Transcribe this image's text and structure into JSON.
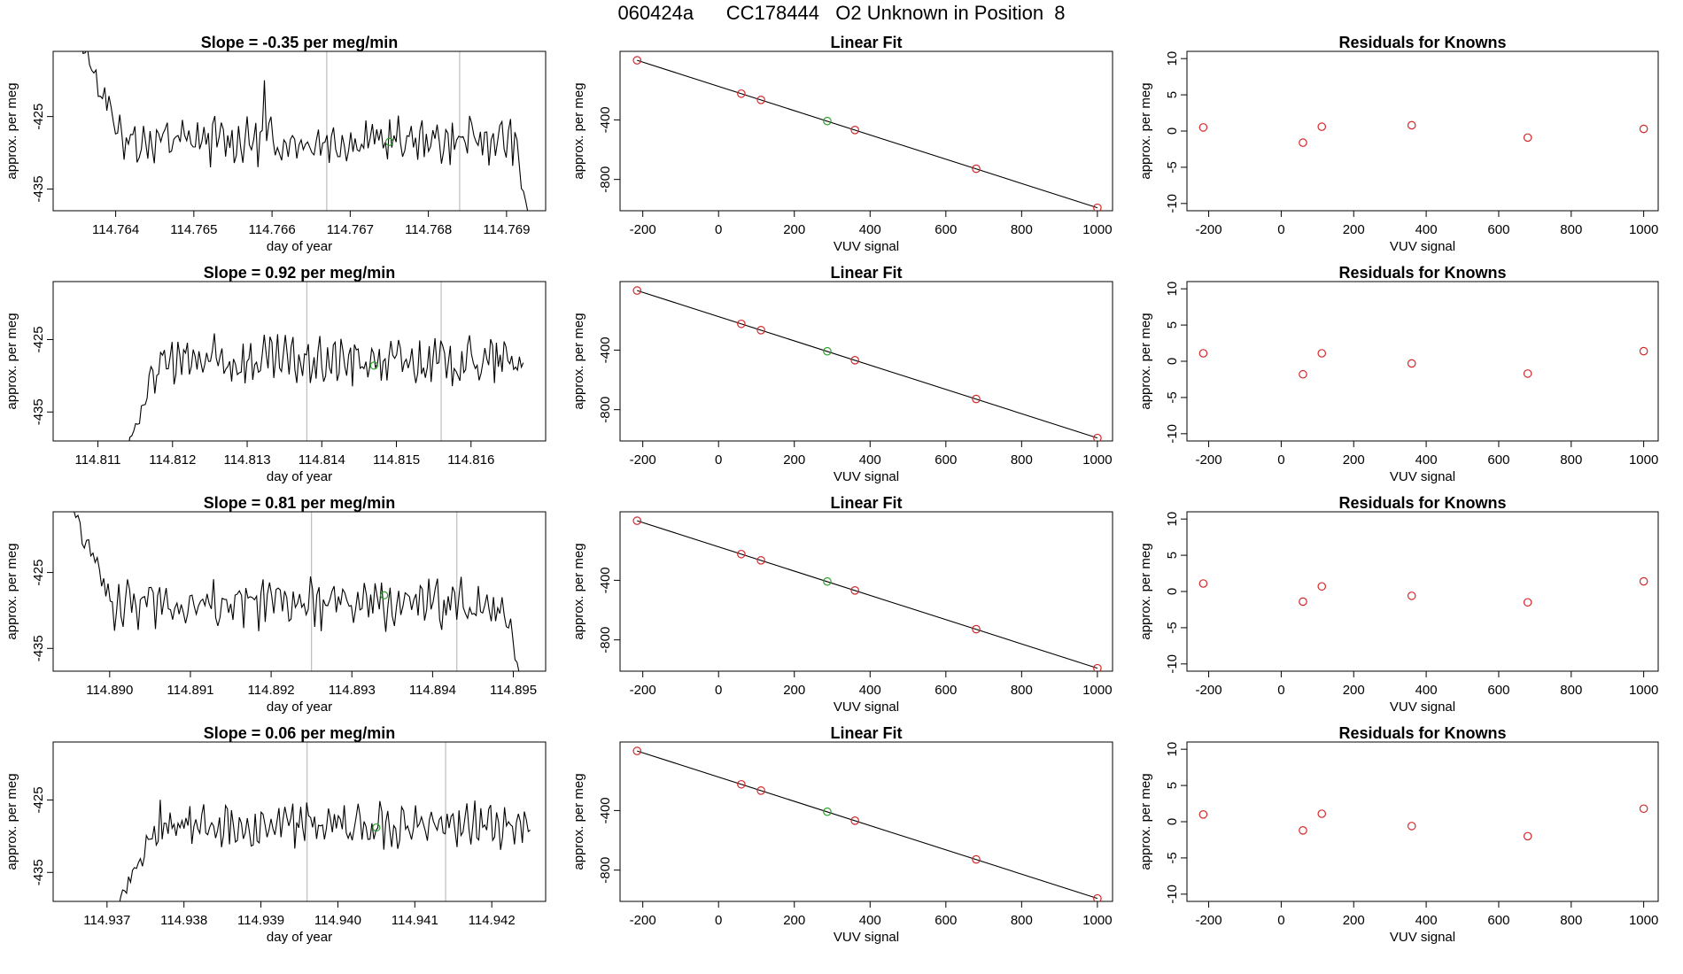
{
  "page_title": "060424a      CC178444   O2 Unknown in Position  8",
  "colors": {
    "trace": "#000000",
    "gridline": "#bebebe",
    "known": "#d62728",
    "unknown": "#2ca02c"
  },
  "labels": {
    "day_of_year": "day of year",
    "vuv_signal": "VUV signal",
    "approx_per_meg": "approx. per meg",
    "linear_fit": "Linear Fit",
    "residuals_for_knowns": "Residuals for Knowns",
    "slope_prefix": "Slope = ",
    "slope_suffix": " per meg/min"
  },
  "chart_data": [
    {
      "row": 1,
      "type": "line",
      "title": "Slope =  -0.35  per meg/min",
      "slope": -0.35,
      "xlabel": "day of year",
      "ylabel": "approx. per meg",
      "xlim": [
        114.7632,
        114.7695
      ],
      "ylim": [
        -438,
        -416
      ],
      "xticks": [
        114.764,
        114.765,
        114.766,
        114.767,
        114.768,
        114.769
      ],
      "xtick_labels": [
        "114.764",
        "114.765",
        "114.766",
        "114.767",
        "114.768",
        "114.769"
      ],
      "yticks": [
        -425,
        -435
      ],
      "ytick_labels": [
        "-425",
        "-435"
      ],
      "vlines": [
        114.7667,
        114.7684
      ],
      "unknown_point": {
        "x": 114.7675,
        "y": -428.5
      },
      "trace": {
        "x_start": 114.7635,
        "x_end": 114.7693,
        "start_y": -413,
        "base": -428.3,
        "amp": 2.5,
        "spike": {
          "x": 114.7659,
          "y": -420
        },
        "end_drop": -440
      }
    },
    {
      "row": 1,
      "type": "scatter",
      "title": "Linear Fit",
      "xlabel": "VUV signal",
      "ylabel": "approx. per meg",
      "xlim": [
        -260,
        1040
      ],
      "ylim": [
        -1010,
        60
      ],
      "xticks": [
        -200,
        0,
        200,
        400,
        600,
        800,
        1000
      ],
      "xtick_labels": [
        "-200",
        "0",
        "200",
        "400",
        "600",
        "800",
        "1000"
      ],
      "yticks": [
        -400,
        -800
      ],
      "ytick_labels": [
        "-400",
        "-800"
      ],
      "line": {
        "x": [
          -215,
          1000
        ],
        "y": [
          0,
          -990
        ]
      },
      "knowns": {
        "x": [
          -215,
          60,
          112,
          360,
          680,
          1000
        ],
        "y": [
          0,
          -224,
          -266,
          -468,
          -728,
          -990
        ]
      },
      "unknown": {
        "x": 287,
        "y": -408
      }
    },
    {
      "row": 1,
      "type": "scatter",
      "title": "Residuals for Knowns",
      "xlabel": "VUV signal",
      "ylabel": "approx. per meg",
      "xlim": [
        -260,
        1040
      ],
      "ylim": [
        -11,
        11
      ],
      "xticks": [
        -200,
        0,
        200,
        400,
        600,
        800,
        1000
      ],
      "xtick_labels": [
        "-200",
        "0",
        "200",
        "400",
        "600",
        "800",
        "1000"
      ],
      "yticks": [
        10,
        5,
        0,
        -5,
        -10
      ],
      "ytick_labels": [
        "10",
        "5",
        "0",
        "-5",
        "-10"
      ],
      "x": [
        -215,
        60,
        112,
        360,
        680,
        1000
      ],
      "y": [
        0.5,
        -1.6,
        0.6,
        0.8,
        -0.9,
        0.3
      ]
    },
    {
      "row": 2,
      "type": "line",
      "title": "Slope =  0.92  per meg/min",
      "slope": 0.92,
      "xlabel": "day of year",
      "ylabel": "approx. per meg",
      "xlim": [
        114.8104,
        114.817
      ],
      "ylim": [
        -439,
        -417
      ],
      "xticks": [
        114.811,
        114.812,
        114.813,
        114.814,
        114.815,
        114.816
      ],
      "xtick_labels": [
        "114.811",
        "114.812",
        "114.813",
        "114.814",
        "114.815",
        "114.816"
      ],
      "yticks": [
        -425,
        -435
      ],
      "ytick_labels": [
        "-425",
        "-435"
      ],
      "vlines": [
        114.8138,
        114.8156
      ],
      "unknown_point": {
        "x": 114.8147,
        "y": -428.6
      },
      "trace": {
        "x_start": 114.8113,
        "x_end": 114.8167,
        "start_y": -442,
        "base": -428,
        "amp": 2.6,
        "spike": null,
        "end_drop": null
      }
    },
    {
      "row": 2,
      "type": "scatter",
      "title": "Linear Fit",
      "xlabel": "VUV signal",
      "ylabel": "approx. per meg",
      "xlim": [
        -260,
        1040
      ],
      "ylim": [
        -1010,
        60
      ],
      "xticks": [
        -200,
        0,
        200,
        400,
        600,
        800,
        1000
      ],
      "xtick_labels": [
        "-200",
        "0",
        "200",
        "400",
        "600",
        "800",
        "1000"
      ],
      "yticks": [
        -400,
        -800
      ],
      "ytick_labels": [
        "-400",
        "-800"
      ],
      "line": {
        "x": [
          -215,
          1000
        ],
        "y": [
          0,
          -990
        ]
      },
      "knowns": {
        "x": [
          -215,
          60,
          112,
          360,
          680,
          1000
        ],
        "y": [
          0,
          -224,
          -266,
          -468,
          -728,
          -990
        ]
      },
      "unknown": {
        "x": 287,
        "y": -408
      }
    },
    {
      "row": 2,
      "type": "scatter",
      "title": "Residuals for Knowns",
      "xlabel": "VUV signal",
      "ylabel": "approx. per meg",
      "xlim": [
        -260,
        1040
      ],
      "ylim": [
        -11,
        11
      ],
      "xticks": [
        -200,
        0,
        200,
        400,
        600,
        800,
        1000
      ],
      "xtick_labels": [
        "-200",
        "0",
        "200",
        "400",
        "600",
        "800",
        "1000"
      ],
      "yticks": [
        10,
        5,
        0,
        -5,
        -10
      ],
      "ytick_labels": [
        "10",
        "5",
        "0",
        "-5",
        "-10"
      ],
      "x": [
        -215,
        60,
        112,
        360,
        680,
        1000
      ],
      "y": [
        1.1,
        -1.8,
        1.1,
        -0.3,
        -1.7,
        1.4
      ]
    },
    {
      "row": 3,
      "type": "line",
      "title": "Slope =  0.81  per meg/min",
      "slope": 0.81,
      "xlabel": "day of year",
      "ylabel": "approx. per meg",
      "xlim": [
        114.8893,
        114.8954
      ],
      "ylim": [
        -438,
        -417
      ],
      "xticks": [
        114.89,
        114.891,
        114.892,
        114.893,
        114.894,
        114.895
      ],
      "xtick_labels": [
        "114.890",
        "114.891",
        "114.892",
        "114.893",
        "114.894",
        "114.895"
      ],
      "yticks": [
        -425,
        -435
      ],
      "ytick_labels": [
        "-425",
        "-435"
      ],
      "vlines": [
        114.8925,
        114.8943
      ],
      "unknown_point": {
        "x": 114.8934,
        "y": -428
      },
      "trace": {
        "x_start": 114.8895,
        "x_end": 114.8951,
        "start_y": -416,
        "base": -429.2,
        "amp": 2.6,
        "spike": null,
        "end_drop": -440
      }
    },
    {
      "row": 3,
      "type": "scatter",
      "title": "Linear Fit",
      "xlabel": "VUV signal",
      "ylabel": "approx. per meg",
      "xlim": [
        -260,
        1040
      ],
      "ylim": [
        -1010,
        60
      ],
      "xticks": [
        -200,
        0,
        200,
        400,
        600,
        800,
        1000
      ],
      "xtick_labels": [
        "-200",
        "0",
        "200",
        "400",
        "600",
        "800",
        "1000"
      ],
      "yticks": [
        -400,
        -800
      ],
      "ytick_labels": [
        "-400",
        "-800"
      ],
      "line": {
        "x": [
          -215,
          1000
        ],
        "y": [
          0,
          -990
        ]
      },
      "knowns": {
        "x": [
          -215,
          60,
          112,
          360,
          680,
          1000
        ],
        "y": [
          0,
          -224,
          -266,
          -468,
          -728,
          -990
        ]
      },
      "unknown": {
        "x": 287,
        "y": -408
      }
    },
    {
      "row": 3,
      "type": "scatter",
      "title": "Residuals for Knowns",
      "xlabel": "VUV signal",
      "ylabel": "approx. per meg",
      "xlim": [
        -260,
        1040
      ],
      "ylim": [
        -11,
        11
      ],
      "xticks": [
        -200,
        0,
        200,
        400,
        600,
        800,
        1000
      ],
      "xtick_labels": [
        "-200",
        "0",
        "200",
        "400",
        "600",
        "800",
        "1000"
      ],
      "yticks": [
        10,
        5,
        0,
        -5,
        -10
      ],
      "ytick_labels": [
        "10",
        "5",
        "0",
        "-5",
        "-10"
      ],
      "x": [
        -215,
        60,
        112,
        360,
        680,
        1000
      ],
      "y": [
        1.1,
        -1.4,
        0.7,
        -0.6,
        -1.5,
        1.4
      ]
    },
    {
      "row": 4,
      "type": "line",
      "title": "Slope =  0.06  per meg/min",
      "slope": 0.06,
      "xlabel": "day of year",
      "ylabel": "approx. per meg",
      "xlim": [
        114.9363,
        114.9427
      ],
      "ylim": [
        -439,
        -417
      ],
      "xticks": [
        114.937,
        114.938,
        114.939,
        114.94,
        114.941,
        114.942
      ],
      "xtick_labels": [
        "114.937",
        "114.938",
        "114.939",
        "114.940",
        "114.941",
        "114.942"
      ],
      "yticks": [
        -425,
        -435
      ],
      "ytick_labels": [
        "-425",
        "-435"
      ],
      "vlines": [
        114.9396,
        114.9414
      ],
      "unknown_point": {
        "x": 114.9405,
        "y": -428.8
      },
      "trace": {
        "x_start": 114.9371,
        "x_end": 114.9425,
        "start_y": -440,
        "base": -428.5,
        "amp": 2.4,
        "spike": null,
        "end_drop": null
      }
    },
    {
      "row": 4,
      "type": "scatter",
      "title": "Linear Fit",
      "xlabel": "VUV signal",
      "ylabel": "approx. per meg",
      "xlim": [
        -260,
        1040
      ],
      "ylim": [
        -1010,
        60
      ],
      "xticks": [
        -200,
        0,
        200,
        400,
        600,
        800,
        1000
      ],
      "xtick_labels": [
        "-200",
        "0",
        "200",
        "400",
        "600",
        "800",
        "1000"
      ],
      "yticks": [
        -400,
        -800
      ],
      "ytick_labels": [
        "-400",
        "-800"
      ],
      "line": {
        "x": [
          -215,
          1000
        ],
        "y": [
          0,
          -990
        ]
      },
      "knowns": {
        "x": [
          -215,
          60,
          112,
          360,
          680,
          1000
        ],
        "y": [
          0,
          -224,
          -266,
          -468,
          -728,
          -990
        ]
      },
      "unknown": {
        "x": 287,
        "y": -408
      }
    },
    {
      "row": 4,
      "type": "scatter",
      "title": "Residuals for Knowns",
      "xlabel": "VUV signal",
      "ylabel": "approx. per meg",
      "xlim": [
        -260,
        1040
      ],
      "ylim": [
        -11,
        11
      ],
      "xticks": [
        -200,
        0,
        200,
        400,
        600,
        800,
        1000
      ],
      "xtick_labels": [
        "-200",
        "0",
        "200",
        "400",
        "600",
        "800",
        "1000"
      ],
      "yticks": [
        10,
        5,
        0,
        -5,
        -10
      ],
      "ytick_labels": [
        "10",
        "5",
        "0",
        "-5",
        "-10"
      ],
      "x": [
        -215,
        60,
        112,
        360,
        680,
        1000
      ],
      "y": [
        1.0,
        -1.2,
        1.1,
        -0.6,
        -2.0,
        1.8
      ]
    }
  ]
}
